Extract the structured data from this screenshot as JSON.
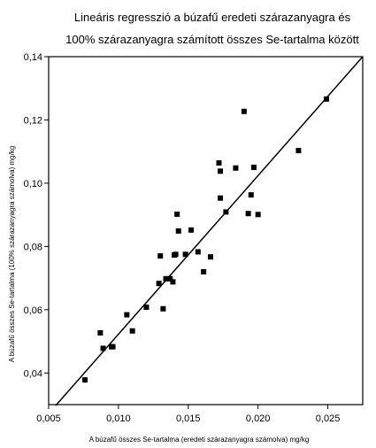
{
  "chart_data": {
    "type": "scatter",
    "title": [
      "Lineáris regresszió  a búzafű eredeti szárazanyagra és",
      "100% szárazanyagra számított összes Se-tartalma között"
    ],
    "xlabel": "A búzafű összes Se-tartalma (eredeti szárazanyagra számolva) mg/kg",
    "ylabel": "A búzafű összes Se-tartalma (100% szárazanyagra számolva) mg/kg",
    "xlim": [
      0.005,
      0.0275
    ],
    "ylim": [
      0.03,
      0.14
    ],
    "x_ticks": [
      {
        "value": 0.005,
        "label": "0,005"
      },
      {
        "value": 0.01,
        "label": "0,010"
      },
      {
        "value": 0.015,
        "label": "0,015"
      },
      {
        "value": 0.02,
        "label": "0,020"
      },
      {
        "value": 0.025,
        "label": "0,025"
      }
    ],
    "y_ticks": [
      {
        "value": 0.04,
        "label": "0,04"
      },
      {
        "value": 0.06,
        "label": "0,06"
      },
      {
        "value": 0.08,
        "label": "0,08"
      },
      {
        "value": 0.1,
        "label": "0,10"
      },
      {
        "value": 0.12,
        "label": "0,12"
      },
      {
        "value": 0.14,
        "label": "0,14"
      }
    ],
    "points": [
      {
        "x": 0.0076,
        "y": 0.0378
      },
      {
        "x": 0.0087,
        "y": 0.0527
      },
      {
        "x": 0.0089,
        "y": 0.0478
      },
      {
        "x": 0.0095,
        "y": 0.0483
      },
      {
        "x": 0.0096,
        "y": 0.0483
      },
      {
        "x": 0.0106,
        "y": 0.0584
      },
      {
        "x": 0.011,
        "y": 0.0533
      },
      {
        "x": 0.012,
        "y": 0.0608
      },
      {
        "x": 0.0129,
        "y": 0.0683
      },
      {
        "x": 0.013,
        "y": 0.077
      },
      {
        "x": 0.0132,
        "y": 0.0603
      },
      {
        "x": 0.0134,
        "y": 0.0698
      },
      {
        "x": 0.0137,
        "y": 0.0698
      },
      {
        "x": 0.0139,
        "y": 0.0688
      },
      {
        "x": 0.014,
        "y": 0.0773
      },
      {
        "x": 0.0141,
        "y": 0.0775
      },
      {
        "x": 0.0142,
        "y": 0.0902
      },
      {
        "x": 0.0143,
        "y": 0.0849
      },
      {
        "x": 0.0148,
        "y": 0.0775
      },
      {
        "x": 0.0152,
        "y": 0.0852
      },
      {
        "x": 0.0157,
        "y": 0.0783
      },
      {
        "x": 0.0161,
        "y": 0.072
      },
      {
        "x": 0.0166,
        "y": 0.0767
      },
      {
        "x": 0.0172,
        "y": 0.1064
      },
      {
        "x": 0.0173,
        "y": 0.1038
      },
      {
        "x": 0.0173,
        "y": 0.0953
      },
      {
        "x": 0.0177,
        "y": 0.0909
      },
      {
        "x": 0.0184,
        "y": 0.1048
      },
      {
        "x": 0.019,
        "y": 0.1227
      },
      {
        "x": 0.0193,
        "y": 0.0904
      },
      {
        "x": 0.0195,
        "y": 0.0963
      },
      {
        "x": 0.0197,
        "y": 0.105
      },
      {
        "x": 0.02,
        "y": 0.0901
      },
      {
        "x": 0.0229,
        "y": 0.1103
      },
      {
        "x": 0.0249,
        "y": 0.1266
      }
    ],
    "regression_line": {
      "x": [
        0.0055,
        0.0275
      ],
      "y": [
        0.0297,
        0.14
      ]
    },
    "grid": false,
    "legend": "none"
  }
}
